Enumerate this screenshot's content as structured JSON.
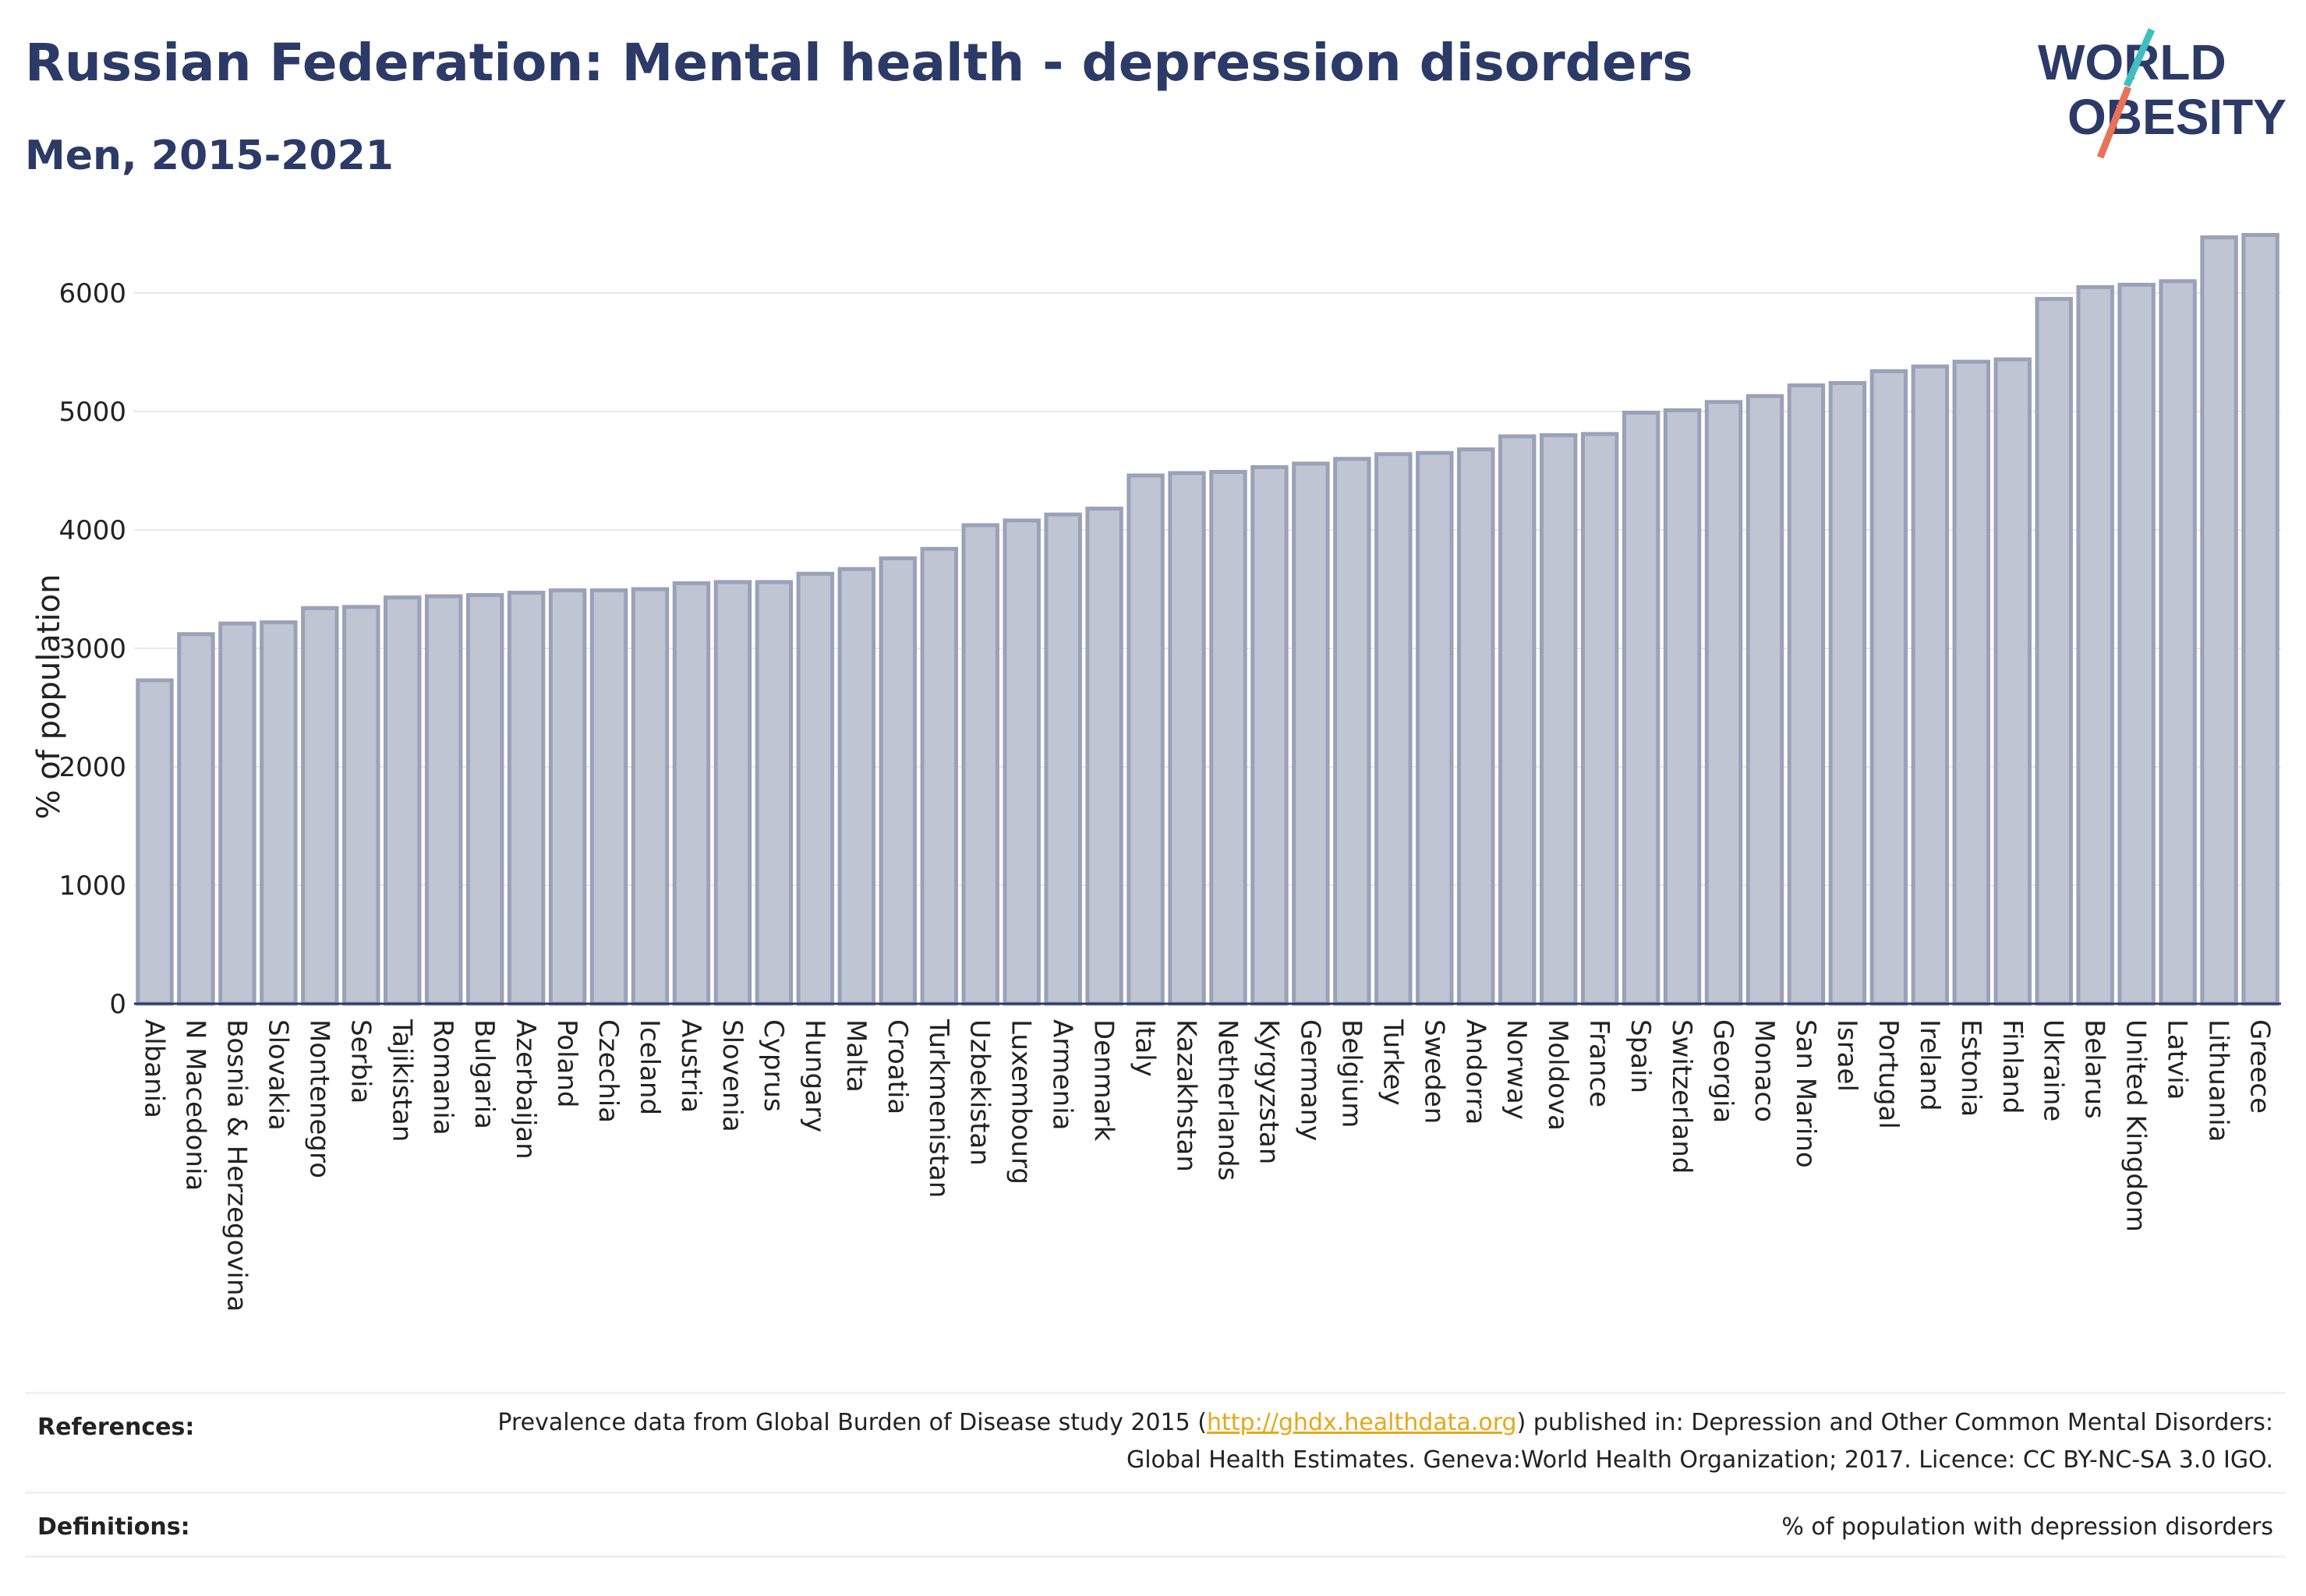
{
  "header": {
    "title": "Russian Federation: Mental health - depression disorders",
    "subtitle": "Men, 2015-2021"
  },
  "logo": {
    "line1": "WORLD",
    "line2": "OBESITY",
    "slash_colors": [
      "#3fbfbf",
      "#e8735a"
    ],
    "text_color": "#2b3a67"
  },
  "chart_data": {
    "type": "bar",
    "ylabel": "% of population",
    "xlabel": "",
    "ylim": [
      0,
      6500
    ],
    "yticks": [
      0,
      1000,
      2000,
      3000,
      4000,
      5000,
      6000
    ],
    "grid": true,
    "bar_color": "#c0c5d4",
    "bar_edge_color": "#9aa1b8",
    "categories": [
      "Albania",
      "N Macedonia",
      "Bosnia & Herzegovina",
      "Slovakia",
      "Montenegro",
      "Serbia",
      "Tajikistan",
      "Romania",
      "Bulgaria",
      "Azerbaijan",
      "Poland",
      "Czechia",
      "Iceland",
      "Austria",
      "Slovenia",
      "Cyprus",
      "Hungary",
      "Malta",
      "Croatia",
      "Turkmenistan",
      "Uzbekistan",
      "Luxembourg",
      "Armenia",
      "Denmark",
      "Italy",
      "Kazakhstan",
      "Netherlands",
      "Kyrgyzstan",
      "Germany",
      "Belgium",
      "Turkey",
      "Sweden",
      "Andorra",
      "Norway",
      "Moldova",
      "France",
      "Spain",
      "Switzerland",
      "Georgia",
      "Monaco",
      "San Marino",
      "Israel",
      "Portugal",
      "Ireland",
      "Estonia",
      "Finland",
      "Ukraine",
      "Belarus",
      "United Kingdom",
      "Latvia",
      "Lithuania",
      "Greece"
    ],
    "values": [
      2730,
      3120,
      3210,
      3220,
      3340,
      3350,
      3430,
      3440,
      3450,
      3470,
      3490,
      3490,
      3500,
      3550,
      3560,
      3560,
      3630,
      3670,
      3760,
      3840,
      4040,
      4080,
      4130,
      4180,
      4460,
      4480,
      4490,
      4530,
      4560,
      4600,
      4640,
      4650,
      4680,
      4790,
      4800,
      4810,
      4990,
      5010,
      5080,
      5130,
      5220,
      5240,
      5340,
      5380,
      5420,
      5440,
      5950,
      6050,
      6070,
      6100,
      6470,
      6490
    ]
  },
  "footer": {
    "references_label": "References:",
    "references_text_before": "Prevalence data from Global Burden of Disease study 2015 (",
    "references_link": "http://ghdx.healthdata.org",
    "references_text_after": ") published in: Depression and Other Common Mental Disorders: Global Health Estimates. Geneva:World Health Organization; 2017. Licence: CC BY-NC-SA 3.0 IGO.",
    "definitions_label": "Definitions:",
    "definitions_text": "% of population with depression disorders"
  }
}
